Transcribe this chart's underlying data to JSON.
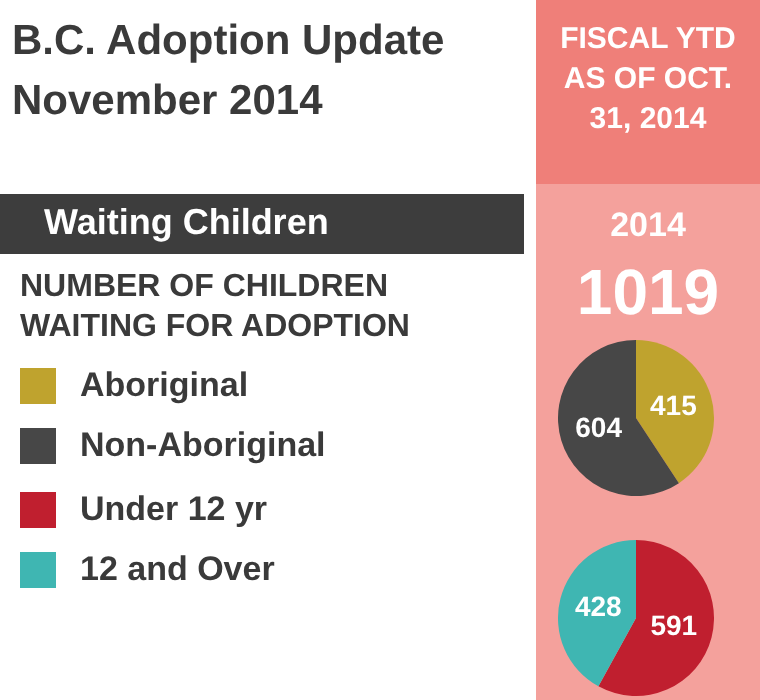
{
  "chart_data": [
    {
      "type": "pie",
      "title": "B.C. Adoption Update November 2014",
      "subtitle": "Waiting Children",
      "legend_title": "NUMBER OF CHILDREN WAITING FOR ADOPTION",
      "annotations": [
        "FISCAL YTD AS OF OCT. 31, 2014",
        "2014",
        "1019"
      ],
      "categories": [
        "Aboriginal",
        "Non-Aboriginal"
      ],
      "values": [
        415,
        604
      ],
      "colors": [
        "#bfa32e",
        "#474747"
      ],
      "data_labels": true,
      "legend": "left"
    },
    {
      "type": "pie",
      "categories": [
        "Under 12 yr",
        "12 and Over"
      ],
      "values": [
        591,
        428
      ],
      "colors": [
        "#c01f2f",
        "#3fb6b2"
      ],
      "data_labels": true,
      "legend": "left"
    }
  ]
}
